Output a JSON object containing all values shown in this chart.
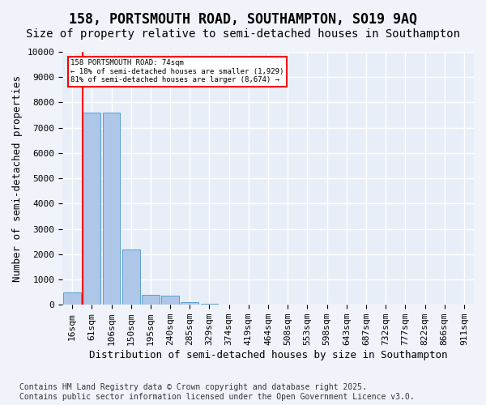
{
  "title_line1": "158, PORTSMOUTH ROAD, SOUTHAMPTON, SO19 9AQ",
  "title_line2": "Size of property relative to semi-detached houses in Southampton",
  "xlabel": "Distribution of semi-detached houses by size in Southampton",
  "ylabel": "Number of semi-detached properties",
  "bins": [
    "16sqm",
    "61sqm",
    "106sqm",
    "150sqm",
    "195sqm",
    "240sqm",
    "285sqm",
    "329sqm",
    "374sqm",
    "419sqm",
    "464sqm",
    "508sqm",
    "553sqm",
    "598sqm",
    "643sqm",
    "687sqm",
    "732sqm",
    "777sqm",
    "822sqm",
    "866sqm",
    "911sqm"
  ],
  "values": [
    500,
    7600,
    7600,
    2200,
    400,
    350,
    100,
    50,
    0,
    0,
    0,
    0,
    0,
    0,
    0,
    0,
    0,
    0,
    0,
    0,
    0
  ],
  "bar_color": "#aec6e8",
  "bar_edge_color": "#5a9fd4",
  "red_line_label_title": "158 PORTSMOUTH ROAD: 74sqm",
  "red_line_label_smaller": "← 18% of semi-detached houses are smaller (1,929)",
  "red_line_label_larger": "81% of semi-detached houses are larger (8,674) →",
  "ylim": [
    0,
    10000
  ],
  "yticks": [
    0,
    1000,
    2000,
    3000,
    4000,
    5000,
    6000,
    7000,
    8000,
    9000,
    10000
  ],
  "footnote": "Contains HM Land Registry data © Crown copyright and database right 2025.\nContains public sector information licensed under the Open Government Licence v3.0.",
  "bg_color": "#f0f4fa",
  "plot_bg_color": "#e8eef8",
  "grid_color": "#ffffff",
  "title_fontsize": 12,
  "subtitle_fontsize": 10,
  "axis_label_fontsize": 9,
  "tick_fontsize": 8,
  "footnote_fontsize": 7
}
